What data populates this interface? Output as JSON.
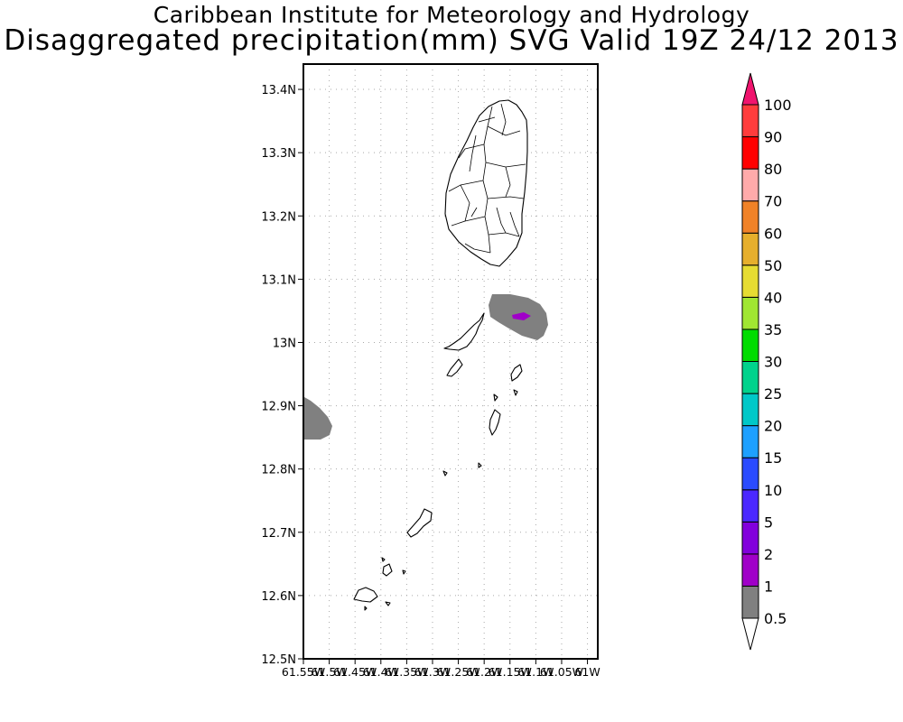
{
  "header": {
    "institute": "Caribbean Institute for Meteorology and Hydrology",
    "product": "Disaggregated precipitation(mm) SVG Valid 19Z 24/12 2013"
  },
  "map": {
    "lat_ticks": [
      "12.5N",
      "12.6N",
      "12.7N",
      "12.8N",
      "12.9N",
      "13N",
      "13.1N",
      "13.2N",
      "13.3N",
      "13.4N"
    ],
    "lon_ticks": [
      "61.55W",
      "61.5W",
      "61.45W",
      "61.4W",
      "61.35W",
      "61.3W",
      "61.25W",
      "61.2W",
      "61.15W",
      "61.1W",
      "61.05W",
      "61W"
    ],
    "grid": true,
    "extent": {
      "lon_min": -61.55,
      "lon_max": -60.98,
      "lat_min": 12.5,
      "lat_max": 13.44
    },
    "precip_features": [
      {
        "name": "gray-patch-east-of-bequia",
        "category": "0.5-1"
      },
      {
        "name": "gray-patch-west-edge",
        "category": "0.5-1"
      },
      {
        "name": "purple-spot",
        "category": "2-5"
      }
    ]
  },
  "legend": {
    "labels": [
      "0.5",
      "1",
      "2",
      "5",
      "10",
      "15",
      "20",
      "25",
      "30",
      "35",
      "40",
      "50",
      "60",
      "70",
      "80",
      "90",
      "100"
    ],
    "colors": [
      "#808080",
      "#a000c8",
      "#8200dc",
      "#4b28ff",
      "#2a4bff",
      "#1ea0ff",
      "#00c8c8",
      "#00d28c",
      "#00dc00",
      "#a0e632",
      "#e6dc32",
      "#e6af2d",
      "#f08228",
      "#ffaaaa",
      "#ff0000",
      "#ff3c3c"
    ],
    "under_color": "#ffffff",
    "over_color": "#f0146e"
  }
}
